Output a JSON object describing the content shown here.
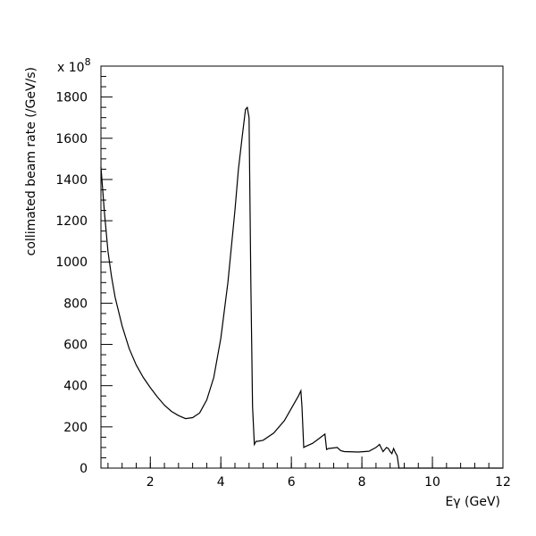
{
  "chart_data": {
    "type": "line",
    "xlabel": "Eγ (GeV)",
    "ylabel": "collimated beam rate (/GeV/s)",
    "y_multiplier": "x 10",
    "y_multiplier_exp": "8",
    "xlim": [
      0.6,
      12
    ],
    "ylim": [
      0,
      1950
    ],
    "x_ticks": [
      2,
      4,
      6,
      8,
      10,
      12
    ],
    "y_ticks": [
      0,
      200,
      400,
      600,
      800,
      1000,
      1200,
      1400,
      1600,
      1800
    ],
    "grid": false,
    "series": [
      {
        "x": [
          0.6,
          0.7,
          0.8,
          0.9,
          1.0,
          1.2,
          1.4,
          1.6,
          1.8,
          2.0,
          2.2,
          2.4,
          2.6,
          2.8,
          3.0,
          3.2,
          3.4,
          3.6,
          3.8,
          4.0,
          4.2,
          4.4,
          4.5,
          4.6,
          4.7,
          4.75,
          4.8,
          4.85,
          4.9,
          4.95,
          5.0,
          5.05,
          5.2,
          5.5,
          5.8,
          6.0,
          6.2,
          6.27,
          6.3,
          6.35,
          6.4,
          6.6,
          6.8,
          6.95,
          7.0,
          7.05,
          7.3,
          7.4,
          7.5,
          7.9,
          8.2,
          8.4,
          8.5,
          8.6,
          8.7,
          8.75,
          8.8,
          8.85,
          8.9,
          8.95,
          9.0,
          9.05,
          12.0
        ],
        "y": [
          1460,
          1240,
          1050,
          930,
          830,
          690,
          580,
          500,
          440,
          390,
          345,
          305,
          275,
          255,
          240,
          245,
          268,
          330,
          440,
          630,
          900,
          1250,
          1450,
          1600,
          1740,
          1750,
          1700,
          900,
          300,
          115,
          130,
          130,
          135,
          170,
          230,
          290,
          350,
          375,
          300,
          100,
          105,
          120,
          145,
          165,
          90,
          95,
          100,
          85,
          80,
          78,
          82,
          100,
          115,
          80,
          100,
          95,
          80,
          70,
          95,
          75,
          60,
          0,
          0
        ]
      }
    ]
  }
}
